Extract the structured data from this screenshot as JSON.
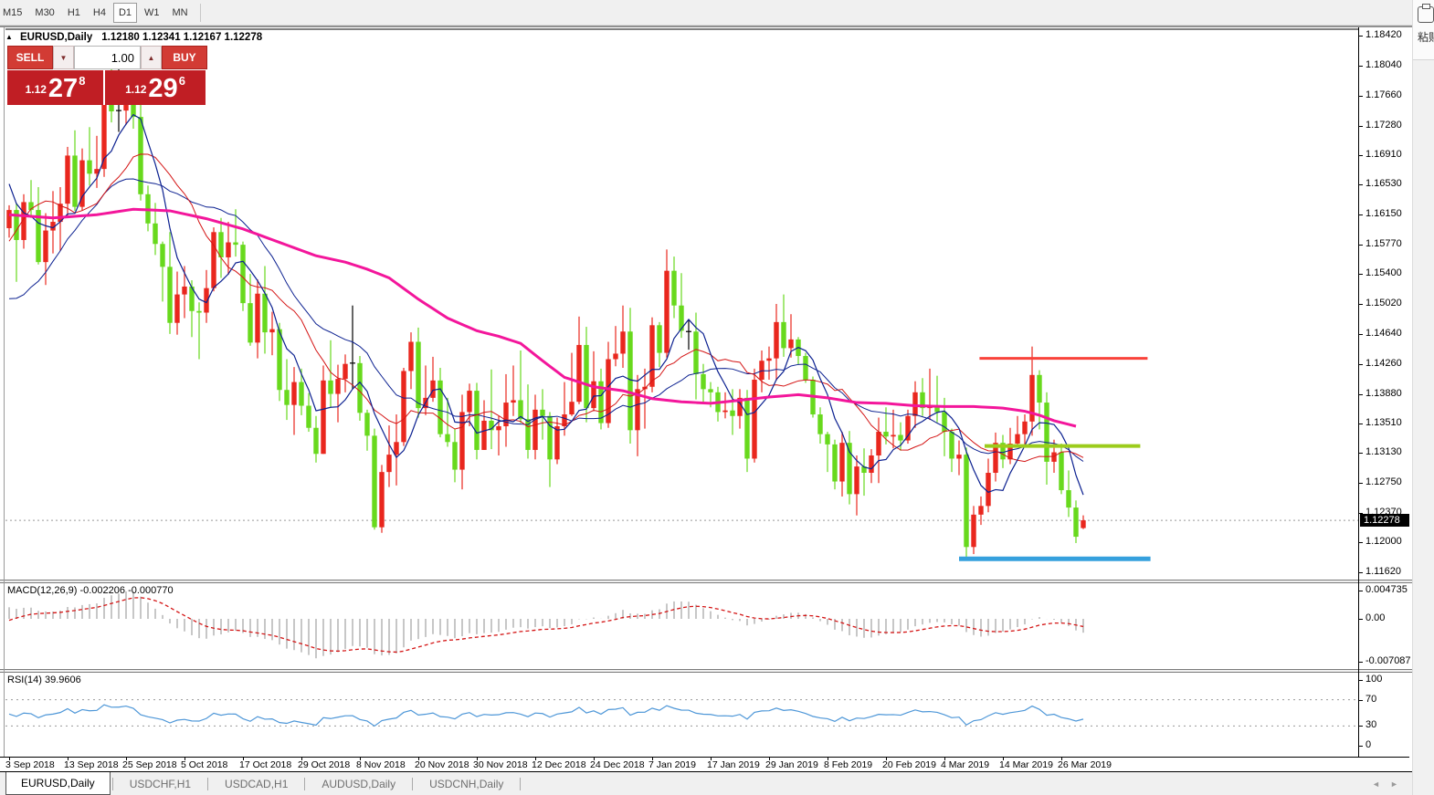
{
  "toolbar": {
    "timeframes": [
      "M15",
      "M30",
      "H1",
      "H4",
      "D1",
      "W1",
      "MN"
    ],
    "active_timeframe": "D1"
  },
  "chart_header": {
    "symbol_label": "EURUSD,Daily",
    "ohlc_label": "1.12180 1.12341 1.12167 1.12278",
    "collapse_icon": "▲"
  },
  "trade_panel": {
    "sell_label": "SELL",
    "buy_label": "BUY",
    "volume": "1.00",
    "spinner_down": "▼",
    "spinner_up": "▲",
    "sell_price": {
      "small": "1.12",
      "big": "27",
      "sup": "8"
    },
    "buy_price": {
      "small": "1.12",
      "big": "29",
      "sup": "6"
    }
  },
  "indicators": {
    "macd_label": "MACD(12,26,9) -0.002206 -0.000770",
    "rsi_label": "RSI(14) 39.9606"
  },
  "tabs": {
    "items": [
      {
        "label": "EURUSD,Daily",
        "active": true
      },
      {
        "label": "USDCHF,H1",
        "active": false
      },
      {
        "label": "USDCAD,H1",
        "active": false
      },
      {
        "label": "AUDUSD,Daily",
        "active": false
      },
      {
        "label": "USDCNH,Daily",
        "active": false
      }
    ],
    "scroll_left": "◄",
    "scroll_right": "►"
  },
  "right_panel": {
    "paste_label": "粘贴"
  },
  "chart_data": {
    "type": "candlestick",
    "symbol": "EURUSD",
    "timeframe": "Daily",
    "current_bar": {
      "open": 1.1218,
      "high": 1.12341,
      "low": 1.12167,
      "close": 1.12278
    },
    "price_tag": "1.12278",
    "colors": {
      "up": "#e9271e",
      "down": "#68d91d",
      "doji": "#000000",
      "ma_pink": "#f3169b",
      "ma_navy": "#0b2090",
      "ma_red": "#d41515",
      "macd_hist": "#b9b9b9",
      "macd_signal": "#d41515",
      "rsi": "#4e97d8",
      "hline_red": "#f9423a",
      "hline_green": "#9ccc1c",
      "hline_blue": "#35a0dd",
      "bid_line": "#999999"
    },
    "price_axis": {
      "labels": [
        "1.18420",
        "1.18040",
        "1.17660",
        "1.17280",
        "1.16910",
        "1.16530",
        "1.16150",
        "1.15770",
        "1.15400",
        "1.15020",
        "1.14640",
        "1.14260",
        "1.13880",
        "1.13510",
        "1.13130",
        "1.12750",
        "1.12370",
        "1.12000",
        "1.11620"
      ],
      "values": [
        1.1842,
        1.1804,
        1.1766,
        1.1728,
        1.1691,
        1.1653,
        1.1615,
        1.1577,
        1.154,
        1.1502,
        1.1464,
        1.1426,
        1.1388,
        1.1351,
        1.1313,
        1.1275,
        1.1237,
        1.12,
        1.1162
      ],
      "top_price": 1.18501,
      "bottom_price": 1.11527
    },
    "x_ticks": [
      {
        "i": 0,
        "label": "3 Sep 2018"
      },
      {
        "i": 8,
        "label": "13 Sep 2018"
      },
      {
        "i": 16,
        "label": "25 Sep 2018"
      },
      {
        "i": 24,
        "label": "5 Oct 2018"
      },
      {
        "i": 32,
        "label": "17 Oct 2018"
      },
      {
        "i": 40,
        "label": "29 Oct 2018"
      },
      {
        "i": 48,
        "label": "8 Nov 2018"
      },
      {
        "i": 56,
        "label": "20 Nov 2018"
      },
      {
        "i": 64,
        "label": "30 Nov 2018"
      },
      {
        "i": 72,
        "label": "12 Dec 2018"
      },
      {
        "i": 80,
        "label": "24 Dec 2018"
      },
      {
        "i": 88,
        "label": "7 Jan 2019"
      },
      {
        "i": 96,
        "label": "17 Jan 2019"
      },
      {
        "i": 104,
        "label": "29 Jan 2019"
      },
      {
        "i": 112,
        "label": "8 Feb 2019"
      },
      {
        "i": 120,
        "label": "20 Feb 2019"
      },
      {
        "i": 128,
        "label": "4 Mar 2019"
      },
      {
        "i": 136,
        "label": "14 Mar 2019"
      },
      {
        "i": 144,
        "label": "26 Mar 2019"
      }
    ],
    "candles": [
      [
        1.1598,
        1.1627,
        1.1586,
        1.1621
      ],
      [
        1.1621,
        1.163,
        1.153,
        1.1583
      ],
      [
        1.1583,
        1.1641,
        1.1572,
        1.1631
      ],
      [
        1.1631,
        1.1659,
        1.1611,
        1.1621
      ],
      [
        1.1621,
        1.165,
        1.1552,
        1.1555
      ],
      [
        1.1555,
        1.1617,
        1.1526,
        1.1595
      ],
      [
        1.1595,
        1.1645,
        1.1566,
        1.1606
      ],
      [
        1.1606,
        1.165,
        1.1569,
        1.1629
      ],
      [
        1.1629,
        1.1701,
        1.1612,
        1.169
      ],
      [
        1.169,
        1.1722,
        1.162,
        1.1625
      ],
      [
        1.1625,
        1.1699,
        1.162,
        1.1684
      ],
      [
        1.1684,
        1.1726,
        1.1652,
        1.1667
      ],
      [
        1.1667,
        1.1715,
        1.1649,
        1.1673
      ],
      [
        1.1673,
        1.1785,
        1.1663,
        1.1779
      ],
      [
        1.1779,
        1.1802,
        1.1732,
        1.1746
      ],
      [
        1.1746,
        1.1815,
        1.172,
        1.1747
      ],
      [
        1.1747,
        1.1795,
        1.1729,
        1.1767
      ],
      [
        1.1767,
        1.1798,
        1.1724,
        1.1739
      ],
      [
        1.1739,
        1.1759,
        1.1633,
        1.1641
      ],
      [
        1.1641,
        1.1652,
        1.1594,
        1.1604
      ],
      [
        1.1604,
        1.163,
        1.1564,
        1.1578
      ],
      [
        1.1578,
        1.1581,
        1.1505,
        1.1549
      ],
      [
        1.1549,
        1.1593,
        1.1464,
        1.1478
      ],
      [
        1.1478,
        1.1543,
        1.1463,
        1.1514
      ],
      [
        1.1514,
        1.155,
        1.1484,
        1.1524
      ],
      [
        1.1524,
        1.1532,
        1.146,
        1.1493
      ],
      [
        1.1493,
        1.1504,
        1.1432,
        1.1491
      ],
      [
        1.1491,
        1.1545,
        1.1478,
        1.1522
      ],
      [
        1.1522,
        1.1599,
        1.1518,
        1.1593
      ],
      [
        1.1593,
        1.1611,
        1.1535,
        1.1561
      ],
      [
        1.1561,
        1.1606,
        1.1539,
        1.158
      ],
      [
        1.158,
        1.1622,
        1.1562,
        1.1577
      ],
      [
        1.1577,
        1.1581,
        1.1493,
        1.1503
      ],
      [
        1.1503,
        1.154,
        1.1449,
        1.1453
      ],
      [
        1.1453,
        1.1533,
        1.1433,
        1.1515
      ],
      [
        1.1515,
        1.155,
        1.1439,
        1.1466
      ],
      [
        1.1466,
        1.1492,
        1.1437,
        1.147
      ],
      [
        1.147,
        1.1478,
        1.1379,
        1.1393
      ],
      [
        1.1393,
        1.1432,
        1.1355,
        1.1374
      ],
      [
        1.1374,
        1.1422,
        1.1336,
        1.1403
      ],
      [
        1.1403,
        1.142,
        1.1361,
        1.1373
      ],
      [
        1.1373,
        1.1389,
        1.134,
        1.1345
      ],
      [
        1.1345,
        1.136,
        1.1301,
        1.1312
      ],
      [
        1.1312,
        1.1424,
        1.1312,
        1.1405
      ],
      [
        1.1405,
        1.1456,
        1.1371,
        1.1388
      ],
      [
        1.1388,
        1.1425,
        1.1352,
        1.1407
      ],
      [
        1.1407,
        1.1438,
        1.139,
        1.1426
      ],
      [
        1.1426,
        1.15,
        1.1394,
        1.1427
      ],
      [
        1.1427,
        1.1436,
        1.1354,
        1.1364
      ],
      [
        1.1364,
        1.1368,
        1.1316,
        1.1335
      ],
      [
        1.1335,
        1.1344,
        1.1216,
        1.1219
      ],
      [
        1.1219,
        1.1298,
        1.1212,
        1.1289
      ],
      [
        1.1289,
        1.1348,
        1.127,
        1.1311
      ],
      [
        1.1311,
        1.1362,
        1.1272,
        1.1327
      ],
      [
        1.1327,
        1.1421,
        1.1322,
        1.1417
      ],
      [
        1.1417,
        1.1466,
        1.1394,
        1.1454
      ],
      [
        1.1454,
        1.1472,
        1.1358,
        1.137
      ],
      [
        1.137,
        1.1424,
        1.1361,
        1.1383
      ],
      [
        1.1383,
        1.1435,
        1.1378,
        1.1405
      ],
      [
        1.1405,
        1.1421,
        1.1333,
        1.1337
      ],
      [
        1.1337,
        1.1383,
        1.1321,
        1.1327
      ],
      [
        1.1327,
        1.1344,
        1.1276,
        1.1292
      ],
      [
        1.1292,
        1.1387,
        1.1267,
        1.1365
      ],
      [
        1.1365,
        1.1401,
        1.1347,
        1.1392
      ],
      [
        1.1392,
        1.1402,
        1.1305,
        1.1317
      ],
      [
        1.1317,
        1.138,
        1.1317,
        1.1354
      ],
      [
        1.1354,
        1.1419,
        1.1318,
        1.1342
      ],
      [
        1.1342,
        1.136,
        1.131,
        1.1347
      ],
      [
        1.1347,
        1.1413,
        1.1321,
        1.1377
      ],
      [
        1.1377,
        1.1424,
        1.136,
        1.138
      ],
      [
        1.138,
        1.1443,
        1.1351,
        1.1356
      ],
      [
        1.1356,
        1.14,
        1.1306,
        1.1317
      ],
      [
        1.1317,
        1.1387,
        1.1305,
        1.1368
      ],
      [
        1.1368,
        1.1394,
        1.133,
        1.136
      ],
      [
        1.136,
        1.1365,
        1.127,
        1.1305
      ],
      [
        1.1305,
        1.1358,
        1.1299,
        1.1347
      ],
      [
        1.1347,
        1.1403,
        1.1335,
        1.1362
      ],
      [
        1.1362,
        1.144,
        1.136,
        1.1378
      ],
      [
        1.1378,
        1.1486,
        1.1375,
        1.145
      ],
      [
        1.145,
        1.1473,
        1.1352,
        1.137
      ],
      [
        1.137,
        1.1442,
        1.1366,
        1.1404
      ],
      [
        1.1404,
        1.142,
        1.1343,
        1.1351
      ],
      [
        1.1351,
        1.1454,
        1.1345,
        1.1432
      ],
      [
        1.1432,
        1.1474,
        1.1423,
        1.1439
      ],
      [
        1.1439,
        1.15,
        1.1421,
        1.1467
      ],
      [
        1.1467,
        1.1497,
        1.1325,
        1.1342
      ],
      [
        1.1342,
        1.1412,
        1.1309,
        1.1394
      ],
      [
        1.1394,
        1.142,
        1.1344,
        1.1397
      ],
      [
        1.1397,
        1.1485,
        1.139,
        1.1475
      ],
      [
        1.1475,
        1.1479,
        1.1422,
        1.144
      ],
      [
        1.144,
        1.1571,
        1.1434,
        1.1544
      ],
      [
        1.1544,
        1.1562,
        1.1484,
        1.15
      ],
      [
        1.15,
        1.1541,
        1.1459,
        1.1468
      ],
      [
        1.1468,
        1.1482,
        1.1444,
        1.1467
      ],
      [
        1.1467,
        1.1491,
        1.1381,
        1.1413
      ],
      [
        1.1413,
        1.1426,
        1.1377,
        1.1394
      ],
      [
        1.1394,
        1.1403,
        1.1371,
        1.139
      ],
      [
        1.139,
        1.1397,
        1.1353,
        1.1365
      ],
      [
        1.1365,
        1.139,
        1.1357,
        1.1367
      ],
      [
        1.1367,
        1.1394,
        1.1336,
        1.136
      ],
      [
        1.136,
        1.1394,
        1.1344,
        1.1383
      ],
      [
        1.1383,
        1.1393,
        1.1289,
        1.1306
      ],
      [
        1.1306,
        1.142,
        1.1301,
        1.1406
      ],
      [
        1.1406,
        1.1443,
        1.139,
        1.143
      ],
      [
        1.143,
        1.1448,
        1.1406,
        1.1433
      ],
      [
        1.1433,
        1.1502,
        1.1405,
        1.1479
      ],
      [
        1.1479,
        1.1514,
        1.1435,
        1.1446
      ],
      [
        1.1446,
        1.1489,
        1.1434,
        1.1457
      ],
      [
        1.1457,
        1.146,
        1.1425,
        1.1436
      ],
      [
        1.1436,
        1.144,
        1.1402,
        1.1406
      ],
      [
        1.1406,
        1.141,
        1.1358,
        1.1362
      ],
      [
        1.1362,
        1.1371,
        1.1325,
        1.1337
      ],
      [
        1.1337,
        1.134,
        1.1289,
        1.1324
      ],
      [
        1.1324,
        1.133,
        1.1267,
        1.1277
      ],
      [
        1.1277,
        1.134,
        1.1258,
        1.1326
      ],
      [
        1.1326,
        1.1341,
        1.1248,
        1.1261
      ],
      [
        1.1261,
        1.131,
        1.1234,
        1.1296
      ],
      [
        1.1296,
        1.1319,
        1.1259,
        1.1288
      ],
      [
        1.1288,
        1.1318,
        1.1275,
        1.131
      ],
      [
        1.131,
        1.1358,
        1.1275,
        1.134
      ],
      [
        1.134,
        1.1371,
        1.1324,
        1.1334
      ],
      [
        1.1334,
        1.1368,
        1.1319,
        1.1336
      ],
      [
        1.1336,
        1.1352,
        1.1316,
        1.1329
      ],
      [
        1.1329,
        1.1368,
        1.1325,
        1.136
      ],
      [
        1.136,
        1.1404,
        1.1345,
        1.139
      ],
      [
        1.139,
        1.1408,
        1.136,
        1.137
      ],
      [
        1.137,
        1.142,
        1.1355,
        1.1373
      ],
      [
        1.1373,
        1.1411,
        1.1352,
        1.1365
      ],
      [
        1.1365,
        1.1383,
        1.1309,
        1.134
      ],
      [
        1.134,
        1.1344,
        1.1289,
        1.1306
      ],
      [
        1.1306,
        1.1329,
        1.1285,
        1.1311
      ],
      [
        1.1311,
        1.132,
        1.1177,
        1.1194
      ],
      [
        1.1194,
        1.1246,
        1.1185,
        1.1235
      ],
      [
        1.1235,
        1.1258,
        1.1222,
        1.1246
      ],
      [
        1.1246,
        1.1306,
        1.1238,
        1.1288
      ],
      [
        1.1288,
        1.1339,
        1.1277,
        1.1326
      ],
      [
        1.1326,
        1.1336,
        1.1294,
        1.1305
      ],
      [
        1.1305,
        1.1345,
        1.1299,
        1.1325
      ],
      [
        1.1325,
        1.136,
        1.132,
        1.1337
      ],
      [
        1.1337,
        1.1362,
        1.1322,
        1.1353
      ],
      [
        1.1353,
        1.1448,
        1.1335,
        1.1412
      ],
      [
        1.1412,
        1.1418,
        1.1343,
        1.1377
      ],
      [
        1.1377,
        1.139,
        1.1273,
        1.1302
      ],
      [
        1.1302,
        1.133,
        1.1288,
        1.1314
      ],
      [
        1.1314,
        1.1325,
        1.1261,
        1.1266
      ],
      [
        1.1266,
        1.1291,
        1.1232,
        1.1244
      ],
      [
        1.1244,
        1.1253,
        1.1199,
        1.1207
      ],
      [
        1.1218,
        1.12341,
        1.12167,
        1.12278
      ]
    ],
    "seed_closes": [
      1.17,
      1.1688,
      1.1665,
      1.163,
      1.1598,
      1.1572,
      1.153,
      1.141,
      1.139,
      1.1345,
      1.1301,
      1.1338,
      1.136,
      1.1384,
      1.1405,
      1.1438,
      1.1459,
      1.1481,
      1.154,
      1.162,
      1.1692,
      1.1733,
      1.17,
      1.1646,
      1.1608,
      1.1616
    ],
    "overlays": {
      "pink_anchors": [
        [
          0,
          1.1615
        ],
        [
          6,
          1.1611
        ],
        [
          12,
          1.1615
        ],
        [
          17,
          1.1622
        ],
        [
          22,
          1.162
        ],
        [
          27,
          1.161
        ],
        [
          32,
          1.1597
        ],
        [
          37,
          1.158
        ],
        [
          42,
          1.1563
        ],
        [
          46,
          1.1555
        ],
        [
          49,
          1.1546
        ],
        [
          52,
          1.1535
        ],
        [
          56,
          1.1508
        ],
        [
          60,
          1.1484
        ],
        [
          64,
          1.1468
        ],
        [
          67,
          1.1461
        ],
        [
          70,
          1.1452
        ],
        [
          73,
          1.143
        ],
        [
          76,
          1.1409
        ],
        [
          80,
          1.1397
        ],
        [
          84,
          1.1392
        ],
        [
          88,
          1.1382
        ],
        [
          92,
          1.1378
        ],
        [
          96,
          1.1376
        ],
        [
          100,
          1.138
        ],
        [
          104,
          1.1384
        ],
        [
          108,
          1.1387
        ],
        [
          112,
          1.1383
        ],
        [
          116,
          1.1377
        ],
        [
          120,
          1.1376
        ],
        [
          124,
          1.1373
        ],
        [
          128,
          1.1372
        ],
        [
          132,
          1.1372
        ],
        [
          136,
          1.137
        ],
        [
          139,
          1.1366
        ],
        [
          141,
          1.1361
        ],
        [
          143,
          1.1354
        ],
        [
          146,
          1.1347
        ]
      ],
      "sma_fast_period": 6,
      "sma_mid_period": 13,
      "sma_slow_period": 22
    },
    "hlines": [
      {
        "name": "resistance-red",
        "price": 1.1433,
        "from": 132.8,
        "to": 155.8,
        "width": 3
      },
      {
        "name": "resistance-green",
        "price": 1.1322,
        "from": 133.5,
        "to": 154.8,
        "width": 4
      },
      {
        "name": "support-blue",
        "price": 1.1179,
        "from": 130.0,
        "to": 156.2,
        "width": 5
      }
    ],
    "macd": {
      "params": "12,26,9",
      "value": -0.002206,
      "signal_value": -0.00077,
      "axis_labels": [
        "0.004735",
        "0.00",
        "-0.007087"
      ],
      "axis_values": [
        0.004735,
        0,
        -0.007087
      ]
    },
    "rsi": {
      "period": 14,
      "value": 39.9606,
      "axis_labels": [
        "100",
        "70",
        "30",
        "0"
      ],
      "axis_values": [
        100,
        70,
        30,
        0
      ],
      "levels": [
        70,
        30
      ]
    }
  }
}
